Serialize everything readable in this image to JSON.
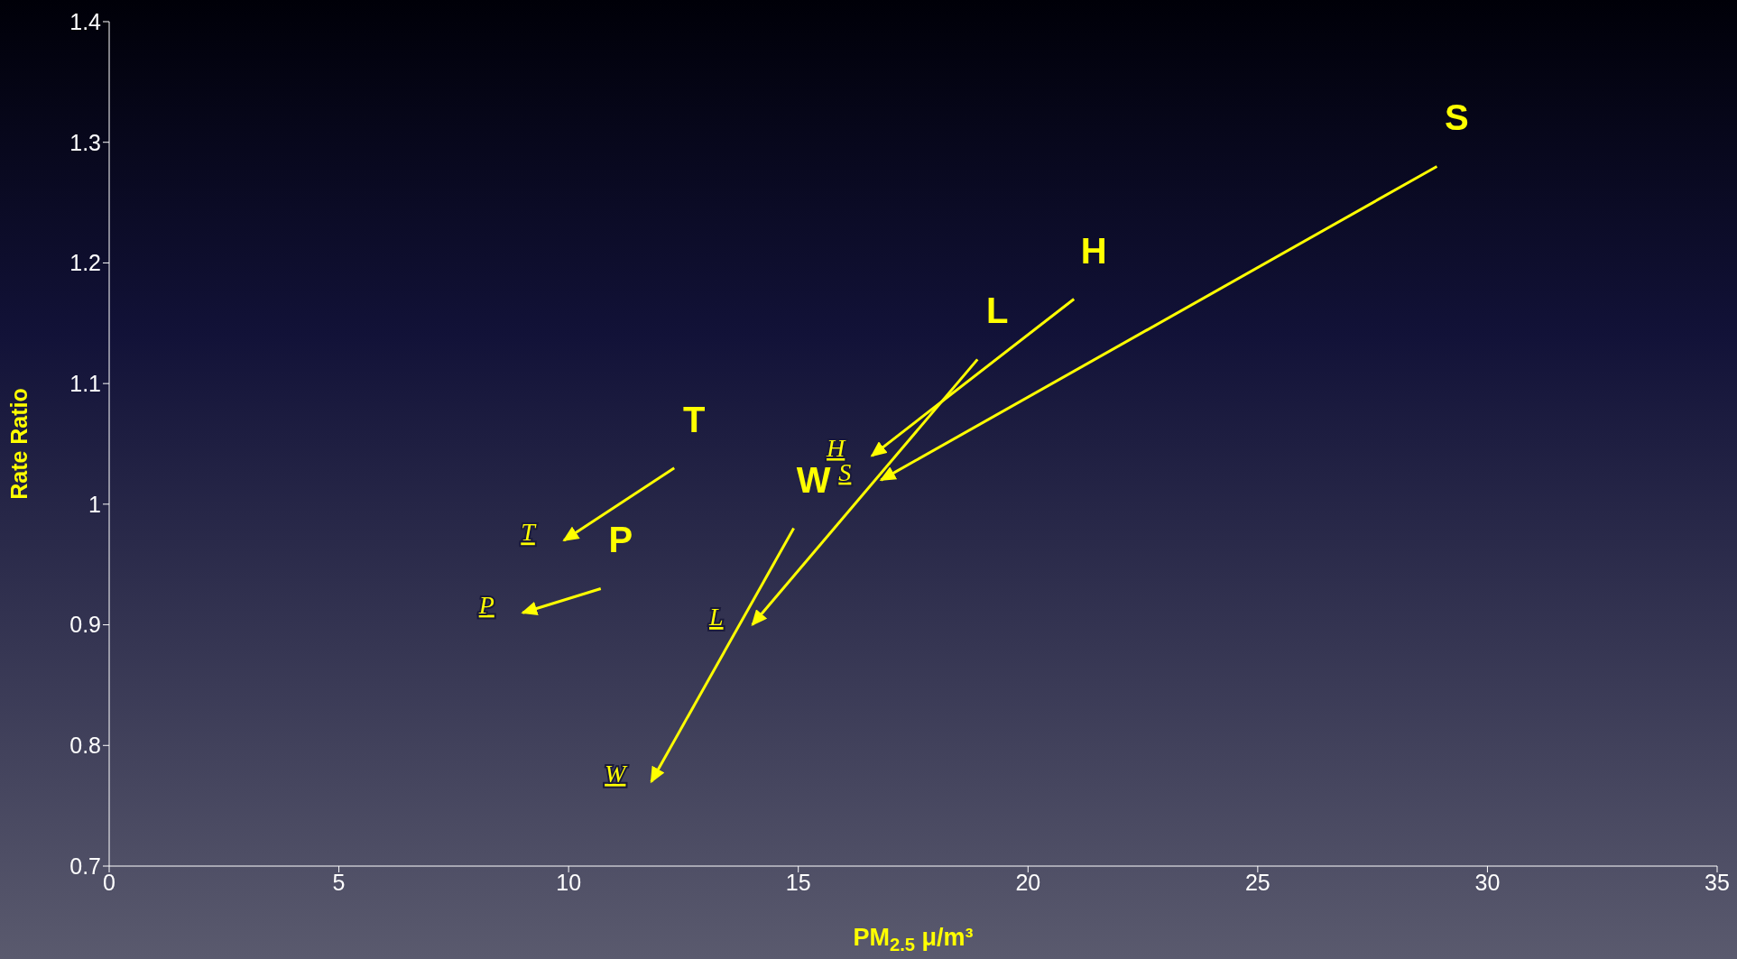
{
  "chart_data": {
    "type": "line",
    "xlabel": "PM$_{2.5}$ μ/m³",
    "ylabel": "Rate Ratio",
    "xlim": [
      0,
      35
    ],
    "xticks": [
      0,
      5,
      10,
      15,
      20,
      25,
      30,
      35
    ],
    "ylim": [
      0.7,
      1.4
    ],
    "yticks": [
      0.7,
      0.8,
      0.9,
      1,
      1.1,
      1.2,
      1.3,
      1.4
    ],
    "grid": false,
    "series": [
      {
        "name": "S",
        "color": "#ffff00",
        "x": [
          28.9,
          16.8
        ],
        "values": [
          1.28,
          1.02
        ]
      },
      {
        "name": "H",
        "color": "#ffff00",
        "x": [
          21.0,
          16.6
        ],
        "values": [
          1.17,
          1.04
        ]
      },
      {
        "name": "L",
        "color": "#ffff00",
        "x": [
          18.9,
          14.0
        ],
        "values": [
          1.12,
          0.9
        ]
      },
      {
        "name": "W",
        "color": "#ffff00",
        "x": [
          14.9,
          11.8
        ],
        "values": [
          0.98,
          0.77
        ]
      },
      {
        "name": "T",
        "color": "#ffff00",
        "x": [
          12.3,
          9.9
        ],
        "values": [
          1.03,
          0.97
        ]
      },
      {
        "name": "P",
        "color": "#ffff00",
        "x": [
          10.7,
          9.0
        ],
        "values": [
          0.93,
          0.91
        ]
      }
    ],
    "annotations": [
      "S",
      "H",
      "L",
      "W",
      "T",
      "P"
    ]
  }
}
